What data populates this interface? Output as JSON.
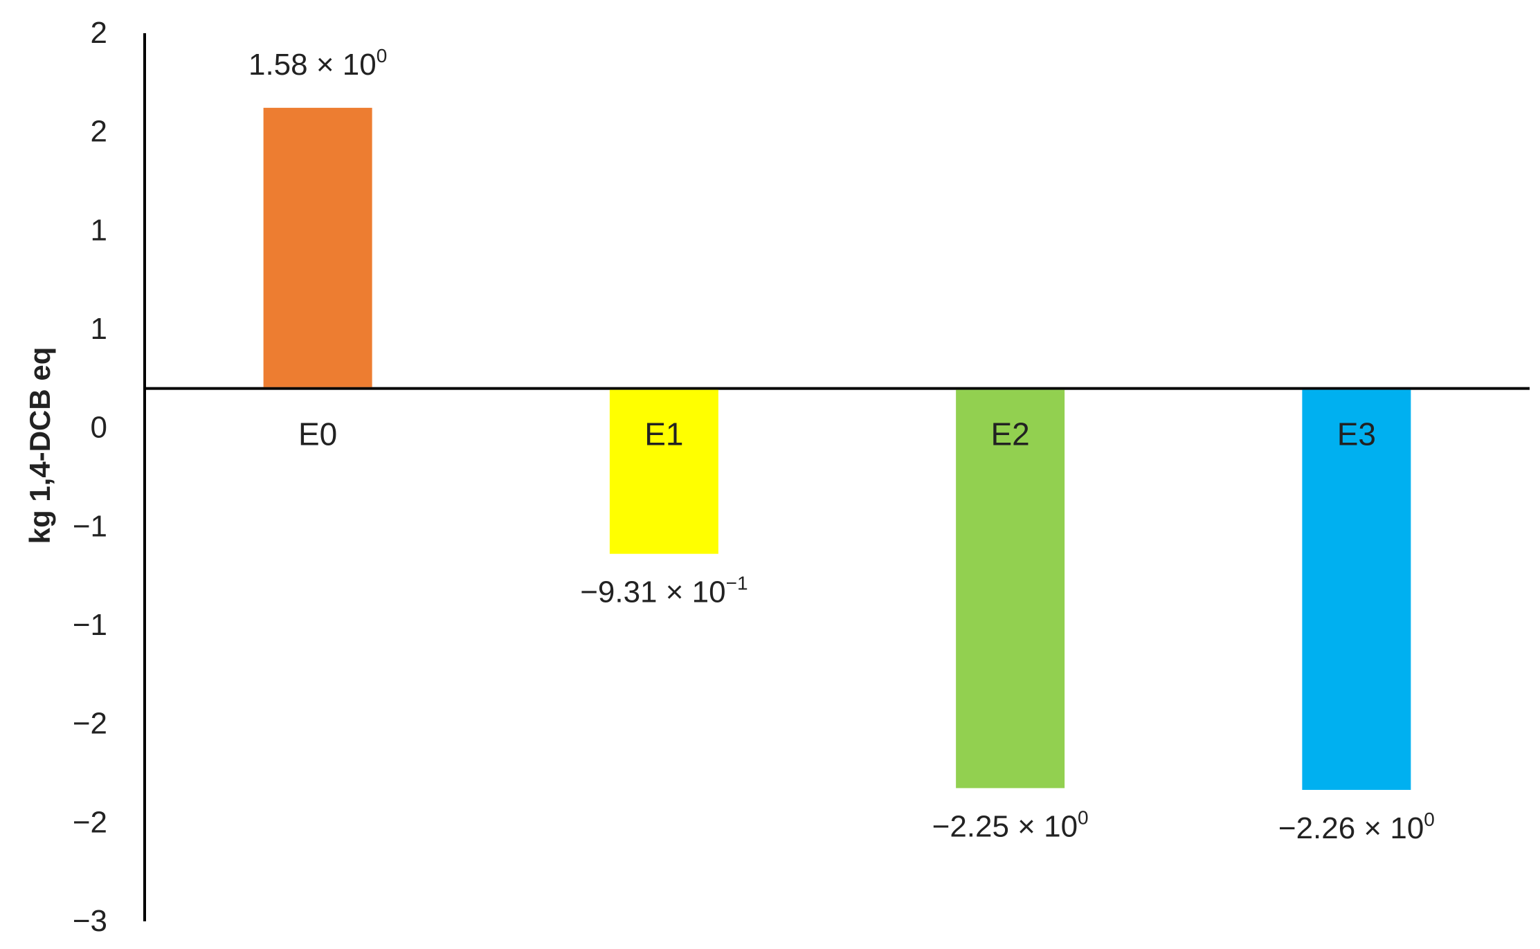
{
  "chart_data": {
    "type": "bar",
    "title": "",
    "xlabel": "",
    "ylabel": "kg 1,4-DCB eq",
    "ylim": [
      -3,
      2
    ],
    "grid": false,
    "legend": "none",
    "categories": [
      "E0",
      "E1",
      "E2",
      "E3"
    ],
    "values": [
      1.58,
      -0.931,
      -2.25,
      -2.26
    ],
    "data_labels": [
      {
        "mantissa": "1.58 × 10",
        "exponent": "0"
      },
      {
        "mantissa": "−9.31 × 10",
        "exponent": "−1"
      },
      {
        "mantissa": "−2.25 × 10",
        "exponent": "0"
      },
      {
        "mantissa": "−2.26 × 10",
        "exponent": "0"
      }
    ],
    "y_tick_labels": [
      "2",
      "2",
      "1",
      "1",
      "0",
      "−1",
      "−1",
      "−2",
      "−2",
      "−3"
    ],
    "colors": [
      "#ED7D31",
      "#FFFF00",
      "#92D050",
      "#00B0F0"
    ],
    "axis_color": "#000000"
  }
}
